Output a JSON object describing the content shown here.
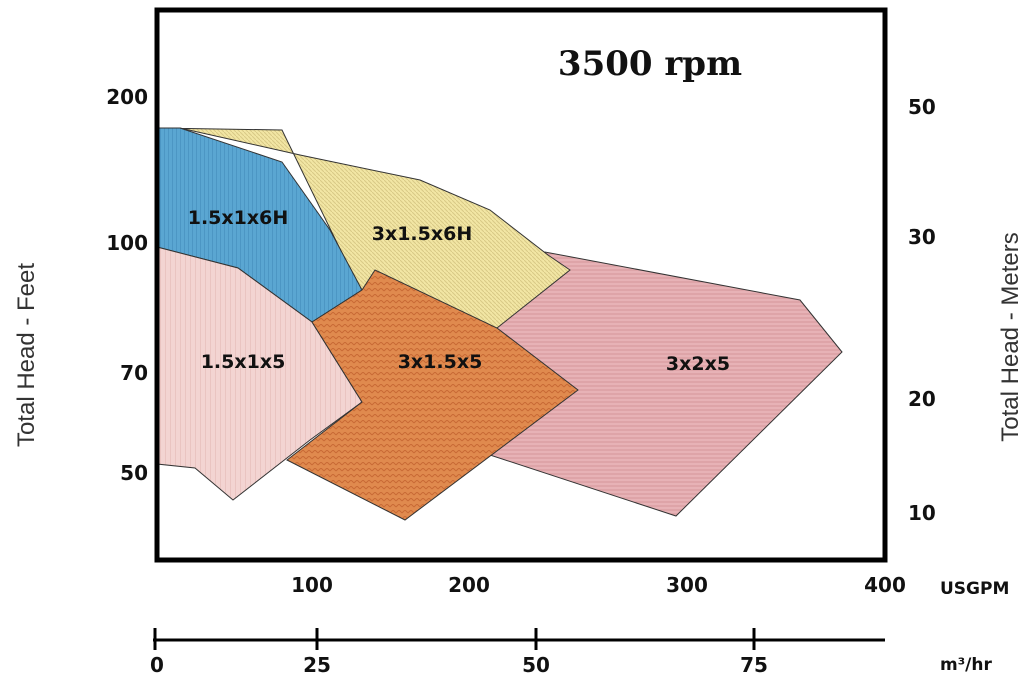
{
  "chart_data": {
    "type": "area",
    "title": "3500 rpm",
    "left_axis": {
      "label": "Total Head - Feet",
      "ticks": [
        200,
        100,
        70,
        50
      ]
    },
    "right_axis": {
      "label": "Total Head - Meters",
      "ticks": [
        50,
        30,
        20,
        10
      ]
    },
    "x_axis": {
      "unit": "USGPM",
      "ticks": [
        100,
        200,
        300,
        400
      ]
    },
    "x_axis_secondary": {
      "unit": "m³/hr",
      "ticks": [
        0,
        25,
        50,
        75
      ]
    },
    "regions": [
      {
        "name": "1.5x1x6H",
        "label": "1.5x1x6H",
        "color": "#5aa6d2"
      },
      {
        "name": "3x1.5x6H",
        "label": "3x1.5x6H",
        "color": "#f2e6a4"
      },
      {
        "name": "1.5x1x5",
        "label": "1.5x1x5",
        "color": "#f0cccc"
      },
      {
        "name": "3x1.5x5",
        "label": "3x1.5x5",
        "color": "#e08a4e"
      },
      {
        "name": "3x2x5",
        "label": "3x2x5",
        "color": "#e6b0b4"
      }
    ]
  }
}
